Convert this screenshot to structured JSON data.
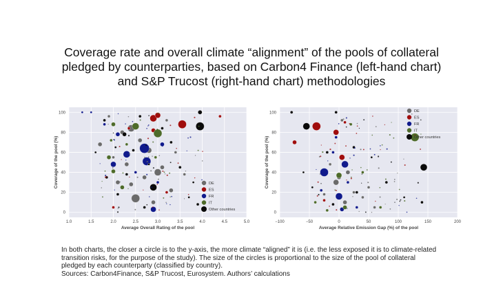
{
  "title": {
    "line1": "Coverage rate and overall climate “alignment” of the pools of collateral",
    "line2": "pledged by counterparties, based on  Carbon4 Finance (left-hand chart)",
    "line3": "and S&P Trucost (right-hand chart)  methodologies"
  },
  "caption": {
    "line1": "In both charts, the closer a circle is to the y-axis, the more climate “aligned” it is (i.e. the less exposed it is to climate-related",
    "line2": "transition risks, for the purpose of the study). The size of the circles is proportional to the size of the pool of collateral",
    "line3": "pledged by each counterparty (classified by country).",
    "line4": "Sources: Carbon4Finance, S&P Trucost, Eurosystem. Authors’ calculations"
  },
  "colors": {
    "DE": "#6b6b6b",
    "ES": "#a00d0d",
    "FR": "#101a8c",
    "IT": "#4e6b2a",
    "Other countries": "#0a0a0a",
    "background": "#e6e7f0",
    "grid": "#ffffff"
  },
  "chart_data": [
    {
      "type": "scatter",
      "title": "",
      "xlabel": "Average Overall Rating of the pool",
      "ylabel": "Coverage of the pool (%)",
      "xlim": [
        1.0,
        5.0
      ],
      "ylim": [
        -5,
        105
      ],
      "xticks": [
        "1.0",
        "1.5",
        "2.0",
        "2.5",
        "3.0",
        "3.5",
        "4.0",
        "4.5",
        "5.0"
      ],
      "yticks": [
        "0",
        "20",
        "40",
        "60",
        "80",
        "100"
      ],
      "grid": true,
      "legend": {
        "placement": "bottom-right",
        "entries": [
          "DE",
          "ES",
          "FR",
          "IT",
          "Other countries"
        ]
      },
      "series": [
        {
          "name": "DE",
          "points": [
            [
              1.9,
              96,
              2
            ],
            [
              2.2,
              80,
              3
            ],
            [
              2.4,
              84,
              5
            ],
            [
              2.6,
              72,
              3
            ],
            [
              2.8,
              62,
              4
            ],
            [
              3.0,
              40,
              5
            ],
            [
              3.1,
              45,
              3
            ],
            [
              2.5,
              14,
              6
            ],
            [
              2.1,
              30,
              3
            ],
            [
              3.3,
              22,
              3
            ],
            [
              2.7,
              35,
              3
            ],
            [
              3.4,
              60,
              2
            ],
            [
              2.3,
              48,
              3
            ],
            [
              3.2,
              92,
              2
            ],
            [
              1.7,
              68,
              3
            ],
            [
              2.0,
              55,
              2
            ],
            [
              2.9,
              10,
              3
            ],
            [
              3.6,
              38,
              2
            ],
            [
              2.4,
              28,
              3
            ]
          ]
        },
        {
          "name": "ES",
          "points": [
            [
              2.9,
              94,
              5
            ],
            [
              3.0,
              97,
              4
            ],
            [
              3.55,
              88,
              6
            ],
            [
              4.4,
              96,
              2
            ],
            [
              2.9,
              82,
              3
            ],
            [
              2.35,
              84,
              2
            ],
            [
              2.0,
              5,
              2
            ],
            [
              3.2,
              20,
              2
            ]
          ]
        },
        {
          "name": "FR",
          "points": [
            [
              1.3,
              100,
              1.5
            ],
            [
              1.5,
              100,
              1.5
            ],
            [
              2.3,
              58,
              5
            ],
            [
              2.0,
              48,
              4
            ],
            [
              2.7,
              64,
              7
            ],
            [
              2.75,
              51,
              6
            ],
            [
              2.9,
              3,
              4
            ],
            [
              2.1,
              78,
              3
            ],
            [
              3.1,
              68,
              3
            ],
            [
              2.5,
              40,
              2
            ],
            [
              1.8,
              88,
              2
            ],
            [
              3.0,
              30,
              2
            ]
          ]
        },
        {
          "name": "IT",
          "points": [
            [
              2.5,
              86,
              5
            ],
            [
              3.0,
              79,
              6
            ],
            [
              2.0,
              88,
              3
            ],
            [
              1.9,
              55,
              3
            ],
            [
              2.2,
              25,
              3
            ],
            [
              2.0,
              41,
              3
            ],
            [
              2.3,
              68,
              2
            ],
            [
              2.95,
              55,
              2
            ],
            [
              1.95,
              72,
              2
            ]
          ]
        },
        {
          "name": "Other countries",
          "points": [
            [
              3.95,
              86,
              6
            ],
            [
              3.95,
              100,
              3
            ],
            [
              2.9,
              25,
              5
            ],
            [
              2.25,
              78,
              3
            ],
            [
              1.8,
              92,
              2
            ],
            [
              2.6,
              96,
              2
            ],
            [
              3.3,
              70,
              2
            ],
            [
              2.1,
              18,
              2
            ],
            [
              3.9,
              8,
              2
            ],
            [
              2.7,
              5,
              2
            ],
            [
              3.5,
              45,
              2
            ],
            [
              2.3,
              38,
              2
            ],
            [
              1.6,
              60,
              1.5
            ],
            [
              3.7,
              15,
              1.5
            ],
            [
              2.45,
              62,
              2
            ],
            [
              3.1,
              84,
              2
            ],
            [
              2.05,
              65,
              1.5
            ],
            [
              2.8,
              48,
              1.5
            ],
            [
              1.85,
              35,
              2
            ],
            [
              3.8,
              30,
              1.5
            ]
          ]
        }
      ]
    },
    {
      "type": "scatter",
      "title": "",
      "xlabel": "Average Relative Emission Gap (%) of the pool",
      "ylabel": "Coverage of the pool (%)",
      "xlim": [
        -100,
        200
      ],
      "ylim": [
        -5,
        105
      ],
      "xticks": [
        "−100",
        "−50",
        "0",
        "50",
        "100",
        "150",
        "200"
      ],
      "yticks": [
        "0",
        "20",
        "40",
        "60",
        "80",
        "100"
      ],
      "grid": true,
      "legend": {
        "placement": "top-right",
        "entries": [
          "DE",
          "ES",
          "FR",
          "IT",
          "Other countries"
        ]
      },
      "series": [
        {
          "name": "DE",
          "points": [
            [
              -5,
              30,
              4
            ],
            [
              0,
              35,
              3
            ],
            [
              10,
              10,
              3
            ],
            [
              25,
              20,
              2
            ],
            [
              -15,
              48,
              2
            ],
            [
              40,
              15,
              2
            ],
            [
              60,
              5,
              2
            ],
            [
              5,
              92,
              2
            ],
            [
              -25,
              18,
              2
            ],
            [
              15,
              40,
              3
            ],
            [
              50,
              25,
              2
            ]
          ]
        },
        {
          "name": "ES",
          "points": [
            [
              -38,
              86,
              6
            ],
            [
              -75,
              70,
              3
            ],
            [
              -5,
              80,
              4
            ],
            [
              5,
              55,
              4
            ],
            [
              10,
              90,
              2
            ],
            [
              -25,
              12,
              2
            ]
          ]
        },
        {
          "name": "FR",
          "points": [
            [
              -25,
              40,
              6
            ],
            [
              10,
              48,
              5
            ],
            [
              0,
              16,
              5
            ],
            [
              -30,
              22,
              2
            ],
            [
              15,
              30,
              2
            ],
            [
              -10,
              60,
              2
            ],
            [
              30,
              5,
              2
            ],
            [
              5,
              3,
              3
            ],
            [
              -5,
              75,
              2
            ]
          ]
        },
        {
          "name": "IT",
          "points": [
            [
              128,
              75,
              6
            ],
            [
              0,
              37,
              4
            ],
            [
              10,
              5,
              3
            ],
            [
              -20,
              2,
              2
            ],
            [
              70,
              5,
              2
            ],
            [
              40,
              40,
              2
            ],
            [
              20,
              88,
              2
            ],
            [
              -40,
              10,
              2
            ]
          ]
        },
        {
          "name": "Other countries",
          "points": [
            [
              143,
              45,
              5
            ],
            [
              -55,
              86,
              5
            ],
            [
              140,
              10,
              2
            ],
            [
              -5,
              100,
              2
            ],
            [
              -20,
              60,
              2
            ],
            [
              25,
              65,
              2
            ],
            [
              80,
              30,
              2
            ],
            [
              -60,
              40,
              1.5
            ],
            [
              -80,
              100,
              2
            ],
            [
              110,
              15,
              1.5
            ],
            [
              -10,
              8,
              2
            ],
            [
              55,
              55,
              1.5
            ],
            [
              30,
              20,
              2
            ],
            [
              -45,
              25,
              1.5
            ]
          ]
        }
      ]
    }
  ]
}
